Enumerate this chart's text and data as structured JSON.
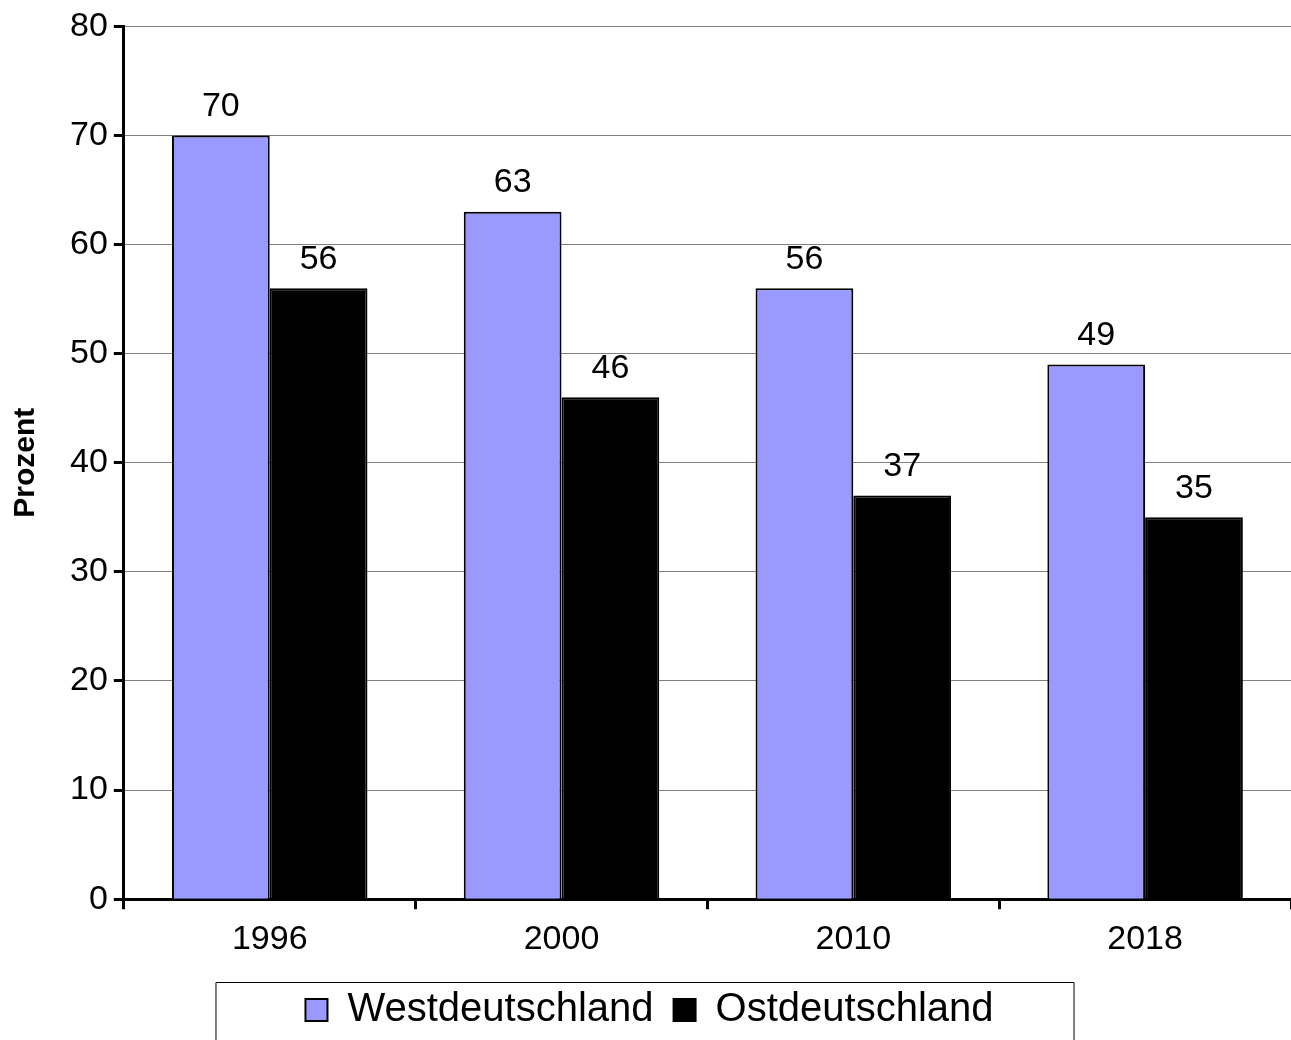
{
  "chart_data": {
    "type": "bar",
    "ylabel": "Prozent",
    "categories": [
      "1996",
      "2000",
      "2010",
      "2018"
    ],
    "series": [
      {
        "name": "Westdeutschland",
        "color": "#9999ff",
        "values": [
          70,
          63,
          56,
          49
        ]
      },
      {
        "name": "Ostdeutschland",
        "color": "#000000",
        "values": [
          56,
          46,
          37,
          35
        ]
      }
    ],
    "ylim": [
      0,
      80
    ],
    "yticks": [
      0,
      10,
      20,
      30,
      40,
      50,
      60,
      70,
      80
    ],
    "grid": "y",
    "legend": "bottom",
    "data_labels": true
  }
}
